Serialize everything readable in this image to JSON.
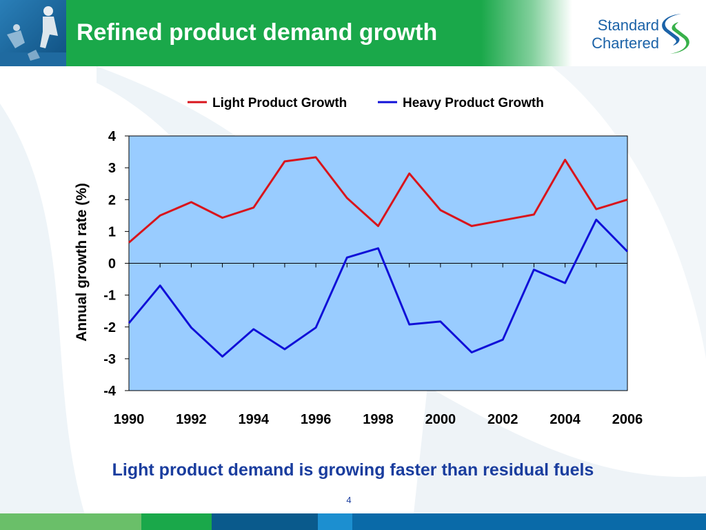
{
  "slide": {
    "title": "Refined product demand growth",
    "caption": "Light product demand is growing faster than residual fuels",
    "page_number": "4"
  },
  "logo": {
    "line1": "Standard",
    "line2": "Chartered",
    "color": "#1c63a8",
    "mark_colors": [
      "#1c63a8",
      "#38b04a"
    ]
  },
  "colors": {
    "header_green": "#1aa84a",
    "plot_background": "#99ccff",
    "caption_blue": "#1a3d9e",
    "footer": [
      "#6abf69",
      "#1aa84a",
      "#0a5a8c",
      "#1c8fd0",
      "#0a6aa8"
    ]
  },
  "chart_data": {
    "type": "line",
    "title": "",
    "xlabel": "",
    "ylabel": "Annual growth rate (%)",
    "x": [
      1990,
      1991,
      1992,
      1993,
      1994,
      1995,
      1996,
      1997,
      1998,
      1999,
      2000,
      2001,
      2002,
      2003,
      2004,
      2005,
      2006
    ],
    "xticks": [
      "1990",
      "1992",
      "1994",
      "1996",
      "1998",
      "2000",
      "2002",
      "2004",
      "2006"
    ],
    "yticks": [
      "4",
      "3",
      "2",
      "1",
      "0",
      "-1",
      "-2",
      "-3",
      "-4"
    ],
    "ylim": [
      -4,
      4
    ],
    "xlim": [
      1990,
      2006
    ],
    "grid": false,
    "legend_position": "top-center",
    "series": [
      {
        "name": "Light Product Growth",
        "color": "#d9141c",
        "values": [
          0.65,
          1.5,
          1.92,
          1.43,
          1.75,
          3.2,
          3.33,
          2.05,
          1.17,
          2.82,
          1.67,
          1.17,
          1.35,
          1.53,
          3.25,
          1.7,
          2.0
        ]
      },
      {
        "name": "Heavy Product Growth",
        "color": "#1010d8",
        "values": [
          -1.88,
          -0.7,
          -2.02,
          -2.93,
          -2.07,
          -2.7,
          -2.02,
          0.18,
          0.47,
          -1.92,
          -1.83,
          -2.8,
          -2.4,
          -0.2,
          -0.62,
          1.37,
          0.37
        ]
      }
    ]
  }
}
